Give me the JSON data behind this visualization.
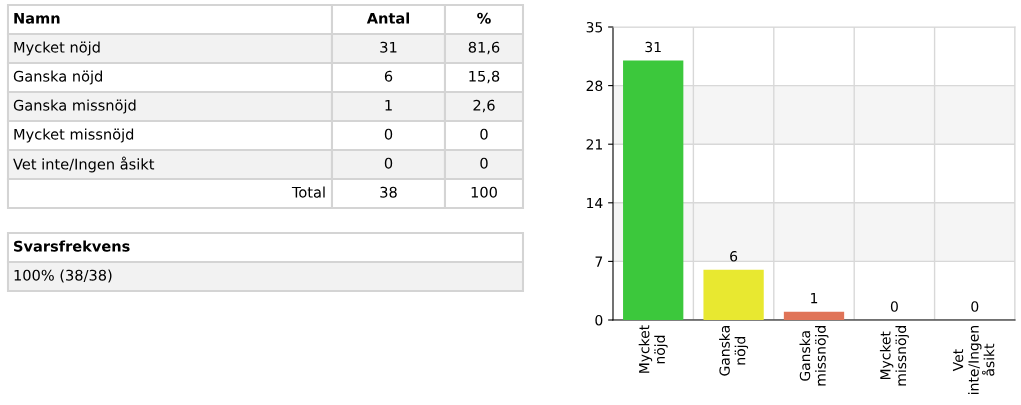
{
  "chart_data": [
    {
      "type": "other",
      "annotations": [
        "Namn",
        "Antal",
        "%",
        "Mycket nöjd",
        "31",
        "81,6",
        "Ganska nöjd",
        "6",
        "15,8",
        "Ganska missnöjd",
        "1",
        "2,6",
        "Mycket missnöjd",
        "0",
        "0",
        "Vet inte/Ingen åsikt",
        "0",
        "0",
        "Total",
        "38",
        "100",
        "Svarsfrekvens",
        "100% (38/38)"
      ]
    },
    {
      "type": "bar",
      "categories": [
        "Mycket\nnöjd",
        "Ganska\nnöjd",
        "Ganska\nmissnöjd",
        "Mycket\nmissnöjd",
        "Vet\ninte/Ingen\nåsikt"
      ],
      "values": [
        31,
        6,
        1,
        0,
        0
      ],
      "colors": [
        "#3cc83c",
        "#e8e830",
        "#e07458",
        "#9090c0",
        "#c0c0c0"
      ],
      "ylim": [
        0,
        35
      ],
      "yticks": [
        0,
        7,
        14,
        21,
        28,
        35
      ],
      "grid": true,
      "data_labels": true,
      "bands": [
        {
          "axis": "y",
          "from": 7,
          "to": 14,
          "color": "#f5f5f5"
        },
        {
          "axis": "y",
          "from": 21,
          "to": 28,
          "color": "#f5f5f5"
        }
      ]
    }
  ]
}
